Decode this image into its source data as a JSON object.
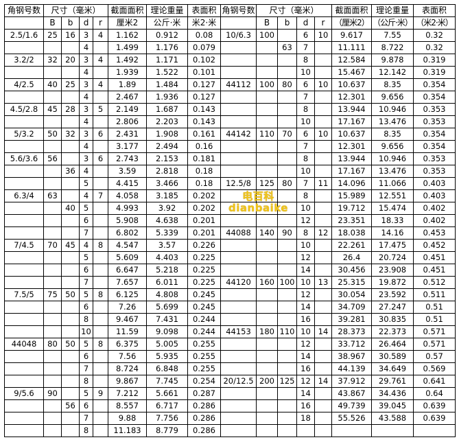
{
  "header_row1": [
    "角钢号数",
    "尺寸（毫米）",
    "截面面积",
    "理论重量",
    "表面积",
    "角钢号数",
    "尺寸（毫米）",
    "截面面积",
    "理论重量",
    "表面积"
  ],
  "header_row2": [
    "",
    "B",
    "b",
    "d",
    "r",
    "厘米2",
    "公斤·米",
    "米2·米",
    "",
    "B",
    "b",
    "d",
    "r",
    "（厘米2）",
    "（公斤·米）",
    "（米2·米）"
  ],
  "rows": [
    [
      "2.5/1.6",
      "25",
      "16",
      "3",
      "4",
      "1.162",
      "0.912",
      "0.08",
      "10/6.3",
      "100",
      "",
      "6",
      "10",
      "9.617",
      "7.55",
      "0.32"
    ],
    [
      "",
      "",
      "",
      "4",
      "",
      "1.499",
      "1.176",
      "0.079",
      "",
      "",
      "63",
      "7",
      "",
      "11.111",
      "8.722",
      "0.32"
    ],
    [
      "3.2/2",
      "32",
      "20",
      "3",
      "4",
      "1.492",
      "1.171",
      "0.102",
      "",
      "",
      "",
      "8",
      "",
      "12.584",
      "9.878",
      "0.319"
    ],
    [
      "",
      "",
      "",
      "4",
      "",
      "1.939",
      "1.522",
      "0.101",
      "",
      "",
      "",
      "10",
      "",
      "15.467",
      "12.142",
      "0.319"
    ],
    [
      "4/2.5",
      "40",
      "25",
      "3",
      "4",
      "1.89",
      "1.484",
      "0.127",
      "44112",
      "100",
      "80",
      "6",
      "10",
      "10.637",
      "8.35",
      "0.354"
    ],
    [
      "",
      "",
      "",
      "4",
      "",
      "2.467",
      "1.936",
      "0.127",
      "",
      "",
      "",
      "7",
      "",
      "12.301",
      "9.656",
      "0.354"
    ],
    [
      "4.5/2.8",
      "45",
      "28",
      "3",
      "5",
      "2.149",
      "1.687",
      "0.143",
      "",
      "",
      "",
      "8",
      "",
      "13.944",
      "10.946",
      "0.353"
    ],
    [
      "",
      "",
      "",
      "4",
      "",
      "2.806",
      "2.203",
      "0.143",
      "",
      "",
      "",
      "10",
      "",
      "17.167",
      "13.476",
      "0.353"
    ],
    [
      "5/3.2",
      "50",
      "32",
      "3",
      "6",
      "2.431",
      "1.908",
      "0.161",
      "44142",
      "110",
      "70",
      "6",
      "10",
      "10.637",
      "8.35",
      "0.354"
    ],
    [
      "",
      "",
      "",
      "4",
      "",
      "3.177",
      "2.494",
      "0.16",
      "",
      "",
      "",
      "7",
      "",
      "12.301",
      "9.656",
      "0.354"
    ],
    [
      "5.6/3.6",
      "56",
      "",
      "3",
      "6",
      "2.743",
      "2.153",
      "0.181",
      "",
      "",
      "",
      "8",
      "",
      "13.944",
      "10.946",
      "0.353"
    ],
    [
      "",
      "",
      "36",
      "4",
      "",
      "3.59",
      "2.818",
      "0.18",
      "",
      "",
      "",
      "10",
      "",
      "17.167",
      "13.476",
      "0.353"
    ],
    [
      "",
      "",
      "",
      "5",
      "",
      "4.415",
      "3.466",
      "0.18",
      "12.5/8",
      "125",
      "80",
      "7",
      "11",
      "14.096",
      "11.066",
      "0.403"
    ],
    [
      "6.3/4",
      "63",
      "",
      "4",
      "7",
      "4.058",
      "3.185",
      "0.202",
      "",
      "",
      "",
      "8",
      "",
      "15.989",
      "12.551",
      "0.403"
    ],
    [
      "",
      "",
      "40",
      "5",
      "",
      "4.993",
      "3.92",
      "0.202",
      "",
      "",
      "",
      "10",
      "",
      "19.712",
      "15.474",
      "0.402"
    ],
    [
      "",
      "",
      "",
      "6",
      "",
      "5.908",
      "4.638",
      "0.201",
      "",
      "",
      "",
      "12",
      "",
      "23.351",
      "18.33",
      "0.402"
    ],
    [
      "",
      "",
      "",
      "7",
      "",
      "6.802",
      "5.339",
      "0.201",
      "44088",
      "140",
      "90",
      "8",
      "12",
      "18.038",
      "14.16",
      "0.453"
    ],
    [
      "7/4.5",
      "70",
      "45",
      "4",
      "8",
      "4.547",
      "3.57",
      "0.226",
      "",
      "",
      "",
      "10",
      "",
      "22.261",
      "17.475",
      "0.452"
    ],
    [
      "",
      "",
      "",
      "5",
      "",
      "5.609",
      "4.403",
      "0.225",
      "",
      "",
      "",
      "12",
      "",
      "26.4",
      "20.724",
      "0.451"
    ],
    [
      "",
      "",
      "",
      "6",
      "",
      "6.647",
      "5.218",
      "0.225",
      "",
      "",
      "",
      "14",
      "",
      "30.456",
      "23.908",
      "0.451"
    ],
    [
      "",
      "",
      "",
      "7",
      "",
      "7.657",
      "6.011",
      "0.225",
      "44120",
      "160",
      "100",
      "10",
      "13",
      "25.315",
      "19.872",
      "0.512"
    ],
    [
      "7.5/5",
      "75",
      "50",
      "5",
      "8",
      "6.125",
      "4.808",
      "0.245",
      "",
      "",
      "",
      "12",
      "",
      "30.054",
      "23.592",
      "0.511"
    ],
    [
      "",
      "",
      "",
      "6",
      "",
      "7.26",
      "5.699",
      "0.245",
      "",
      "",
      "",
      "14",
      "",
      "34.709",
      "27.247",
      "0.51"
    ],
    [
      "",
      "",
      "",
      "8",
      "",
      "9.467",
      "7.431",
      "0.244",
      "",
      "",
      "",
      "16",
      "",
      "39.281",
      "30.835",
      "0.51"
    ],
    [
      "",
      "",
      "",
      "10",
      "",
      "11.59",
      "9.098",
      "0.244",
      "44153",
      "180",
      "110",
      "10",
      "14",
      "28.373",
      "22.373",
      "0.571"
    ],
    [
      "44048",
      "80",
      "50",
      "5",
      "8",
      "6.375",
      "5.005",
      "0.255",
      "",
      "",
      "",
      "12",
      "",
      "33.712",
      "26.464",
      "0.571"
    ],
    [
      "",
      "",
      "",
      "6",
      "",
      "7.56",
      "5.935",
      "0.255",
      "",
      "",
      "",
      "14",
      "",
      "38.967",
      "30.589",
      "0.57"
    ],
    [
      "",
      "",
      "",
      "7",
      "",
      "8.724",
      "6.848",
      "0.255",
      "",
      "",
      "",
      "16",
      "",
      "44.139",
      "34.649",
      "0.569"
    ],
    [
      "",
      "",
      "",
      "8",
      "",
      "9.867",
      "7.745",
      "0.254",
      "20/12.5",
      "200",
      "125",
      "12",
      "14",
      "37.912",
      "29.761",
      "0.641"
    ],
    [
      "9/5.6",
      "90",
      "",
      "5",
      "9",
      "7.212",
      "5.661",
      "0.287",
      "",
      "",
      "",
      "14",
      "",
      "43.867",
      "34.436",
      "0.64"
    ],
    [
      "",
      "",
      "56",
      "6",
      "",
      "8.557",
      "6.717",
      "0.286",
      "",
      "",
      "",
      "16",
      "",
      "49.739",
      "39.045",
      "0.639"
    ],
    [
      "",
      "",
      "",
      "7",
      "",
      "9.88",
      "7.756",
      "0.286",
      "",
      "",
      "",
      "18",
      "",
      "55.526",
      "43.588",
      "0.639"
    ],
    [
      "",
      "",
      "",
      "8",
      "",
      "11.183",
      "8.779",
      "0.286",
      "",
      "",
      "",
      "",
      "",
      "",
      "",
      ""
    ]
  ],
  "watermark": "电百科 dianbaike",
  "colors": {
    "watermark": "#f0c419",
    "border": "#000000"
  }
}
